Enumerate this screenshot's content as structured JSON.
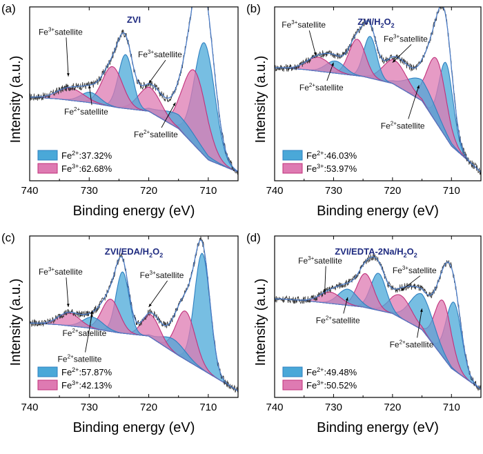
{
  "colors": {
    "fe2_fill": "#4aa8d8",
    "fe3_fill": "#de7ab2",
    "fe2_line": "#2f7fc0",
    "fe3_line": "#c0307a",
    "raw": "#333333",
    "envelope": "#4c7dc8",
    "title": "#1f2b80"
  },
  "chart_data": [
    {
      "panel": "(a)",
      "type": "line",
      "title_parts": [
        "ZVI"
      ],
      "xlabel": "Binding energy (eV)",
      "ylabel": "Intensity (a.u.)",
      "xlim": [
        740,
        705
      ],
      "ylim": [
        0,
        1
      ],
      "xticks": [
        740,
        730,
        720,
        710
      ],
      "x_tick_labels": [
        "740",
        "730",
        "720",
        "710"
      ],
      "background": [
        [
          705,
          0.05
        ],
        [
          710,
          0.12
        ],
        [
          715,
          0.3
        ],
        [
          720,
          0.4
        ],
        [
          725,
          0.42
        ],
        [
          730,
          0.45
        ],
        [
          735,
          0.47
        ],
        [
          739,
          0.48
        ]
      ],
      "peaks": [
        {
          "species": "Fe2+",
          "center": 710.6,
          "height": 0.65,
          "width": 1.7
        },
        {
          "species": "Fe3+",
          "center": 712.3,
          "height": 0.43,
          "width": 2.0
        },
        {
          "species": "Fe2+",
          "center": 714.8,
          "height": 0.08,
          "width": 3.0
        },
        {
          "species": "Fe3+",
          "center": 719.8,
          "height": 0.14,
          "width": 1.9
        },
        {
          "species": "Fe2+",
          "center": 723.9,
          "height": 0.31,
          "width": 1.2
        },
        {
          "species": "Fe3+",
          "center": 726.1,
          "height": 0.23,
          "width": 1.7
        },
        {
          "species": "Fe2+",
          "center": 729.8,
          "height": 0.06,
          "width": 1.6
        },
        {
          "species": "Fe3+",
          "center": 733.2,
          "height": 0.07,
          "width": 2.2
        }
      ],
      "annotations": [
        {
          "ion": "Fe",
          "charge": "3+",
          "word": "satellite",
          "tx": 738.5,
          "ty": 0.84,
          "ax": 733.5,
          "ay": 0.6
        },
        {
          "ion": "Fe",
          "charge": "2+",
          "word": "satellite",
          "tx": 734.2,
          "ty": 0.38,
          "ax": 730.0,
          "ay": 0.55
        },
        {
          "ion": "Fe",
          "charge": "3+",
          "word": "satellite",
          "tx": 721.8,
          "ty": 0.71,
          "ax": 720.0,
          "ay": 0.56
        },
        {
          "ion": "Fe",
          "charge": "2+",
          "word": "satellite",
          "tx": 722.5,
          "ty": 0.25,
          "ax": 715.5,
          "ay": 0.45
        }
      ],
      "legend": [
        {
          "ion": "Fe",
          "charge": "2+",
          "value": ":37.32%"
        },
        {
          "ion": "Fe",
          "charge": "3+",
          "value": ":62.68%"
        }
      ]
    },
    {
      "panel": "(b)",
      "type": "line",
      "title_parts": [
        "ZVI/H",
        "2",
        "O",
        "2"
      ],
      "xlabel": "Binding energy (eV)",
      "ylabel": "Intensity (a.u.)",
      "xlim": [
        740,
        705
      ],
      "ylim": [
        0,
        1
      ],
      "xticks": [
        740,
        730,
        720,
        710
      ],
      "x_tick_labels": [
        "740",
        "730",
        "720",
        "710"
      ],
      "background": [
        [
          705,
          0.05
        ],
        [
          710,
          0.2
        ],
        [
          715,
          0.46
        ],
        [
          720,
          0.56
        ],
        [
          725,
          0.6
        ],
        [
          730,
          0.62
        ],
        [
          735,
          0.64
        ],
        [
          739,
          0.65
        ]
      ],
      "peaks": [
        {
          "species": "Fe2+",
          "center": 710.9,
          "height": 0.43,
          "width": 1.2
        },
        {
          "species": "Fe3+",
          "center": 712.5,
          "height": 0.37,
          "width": 1.6
        },
        {
          "species": "Fe2+",
          "center": 715.0,
          "height": 0.12,
          "width": 2.5
        },
        {
          "species": "Fe3+",
          "center": 719.6,
          "height": 0.14,
          "width": 2.0
        },
        {
          "species": "Fe2+",
          "center": 723.8,
          "height": 0.24,
          "width": 1.1
        },
        {
          "species": "Fe3+",
          "center": 726.0,
          "height": 0.21,
          "width": 1.4
        },
        {
          "species": "Fe2+",
          "center": 729.7,
          "height": 0.07,
          "width": 1.6
        },
        {
          "species": "Fe3+",
          "center": 732.6,
          "height": 0.08,
          "width": 2.0
        }
      ],
      "annotations": [
        {
          "ion": "Fe",
          "charge": "3+",
          "word": "satellite",
          "tx": 738.8,
          "ty": 0.88,
          "ax": 733.0,
          "ay": 0.72
        },
        {
          "ion": "Fe",
          "charge": "2+",
          "word": "satellite",
          "tx": 735.8,
          "ty": 0.52,
          "ax": 730.0,
          "ay": 0.68
        },
        {
          "ion": "Fe",
          "charge": "3+",
          "word": "satellite",
          "tx": 721.5,
          "ty": 0.8,
          "ax": 720.0,
          "ay": 0.68
        },
        {
          "ion": "Fe",
          "charge": "2+",
          "word": "satellite",
          "tx": 722.0,
          "ty": 0.3,
          "ax": 715.5,
          "ay": 0.55
        }
      ],
      "legend": [
        {
          "ion": "Fe",
          "charge": "2+",
          "value": ":46.03%"
        },
        {
          "ion": "Fe",
          "charge": "3+",
          "value": ":53.97%"
        }
      ]
    },
    {
      "panel": "(c)",
      "type": "line",
      "title_parts": [
        "ZVI/EDA/H",
        "2",
        "O",
        "2"
      ],
      "xlabel": "Binding energy (eV)",
      "ylabel": "Intensity (a.u.)",
      "xlim": [
        740,
        705
      ],
      "ylim": [
        0,
        1
      ],
      "xticks": [
        740,
        730,
        720,
        710
      ],
      "x_tick_labels": [
        "740",
        "730",
        "720",
        "710"
      ],
      "background": [
        [
          705,
          0.04
        ],
        [
          710,
          0.15
        ],
        [
          715,
          0.26
        ],
        [
          720,
          0.38
        ],
        [
          725,
          0.4
        ],
        [
          730,
          0.43
        ],
        [
          735,
          0.45
        ],
        [
          739,
          0.46
        ]
      ],
      "peaks": [
        {
          "species": "Fe2+",
          "center": 711.0,
          "height": 0.72,
          "width": 1.3
        },
        {
          "species": "Fe3+",
          "center": 713.8,
          "height": 0.3,
          "width": 1.6
        },
        {
          "species": "Fe2+",
          "center": 715.8,
          "height": 0.08,
          "width": 2.0
        },
        {
          "species": "Fe3+",
          "center": 719.6,
          "height": 0.14,
          "width": 1.5
        },
        {
          "species": "Fe2+",
          "center": 724.4,
          "height": 0.38,
          "width": 1.1
        },
        {
          "species": "Fe3+",
          "center": 726.4,
          "height": 0.2,
          "width": 1.5
        },
        {
          "species": "Fe2+",
          "center": 729.4,
          "height": 0.07,
          "width": 1.7
        },
        {
          "species": "Fe3+",
          "center": 733.4,
          "height": 0.08,
          "width": 1.8
        }
      ],
      "annotations": [
        {
          "ion": "Fe",
          "charge": "3+",
          "word": "satellite",
          "tx": 738.5,
          "ty": 0.76,
          "ax": 733.5,
          "ay": 0.56
        },
        {
          "ion": "Fe",
          "charge": "2+",
          "word": "satellite",
          "tx": 734.5,
          "ty": 0.38,
          "ax": 729.5,
          "ay": 0.54
        },
        {
          "ion": "Fe",
          "charge": "3+",
          "word": "satellite",
          "tx": 721.5,
          "ty": 0.74,
          "ax": 720.0,
          "ay": 0.56
        },
        {
          "ion": "Fe",
          "charge": "2+",
          "word": "satellite",
          "tx": 0,
          "ty": 0,
          "ax": 0,
          "ay": 0
        }
      ],
      "legend": [
        {
          "ion": "Fe",
          "charge": "2+",
          "value": ":57.87%"
        },
        {
          "ion": "Fe",
          "charge": "3+",
          "value": ":42.13%"
        }
      ]
    },
    {
      "panel": "(d)",
      "type": "line",
      "title_parts": [
        "ZVI/EDTA-2Na/H",
        "2",
        "O",
        "2"
      ],
      "xlabel": "Binding energy (eV)",
      "ylabel": "Intensity (a.u.)",
      "xlim": [
        740,
        705
      ],
      "ylim": [
        0,
        1
      ],
      "xticks": [
        740,
        730,
        720,
        710
      ],
      "x_tick_labels": [
        "740",
        "730",
        "720",
        "710"
      ],
      "background": [
        [
          705,
          0.05
        ],
        [
          710,
          0.18
        ],
        [
          715,
          0.42
        ],
        [
          720,
          0.52
        ],
        [
          725,
          0.56
        ],
        [
          730,
          0.58
        ],
        [
          735,
          0.6
        ],
        [
          739,
          0.61
        ]
      ],
      "peaks": [
        {
          "species": "Fe2+",
          "center": 709.6,
          "height": 0.42,
          "width": 1.3
        },
        {
          "species": "Fe3+",
          "center": 711.4,
          "height": 0.35,
          "width": 1.4
        },
        {
          "species": "Fe2+",
          "center": 715.0,
          "height": 0.22,
          "width": 2.0
        },
        {
          "species": "Fe3+",
          "center": 718.6,
          "height": 0.14,
          "width": 1.8
        },
        {
          "species": "Fe2+",
          "center": 722.4,
          "height": 0.23,
          "width": 1.3
        },
        {
          "species": "Fe3+",
          "center": 724.6,
          "height": 0.21,
          "width": 1.4
        },
        {
          "species": "Fe2+",
          "center": 727.6,
          "height": 0.1,
          "width": 1.6
        },
        {
          "species": "Fe3+",
          "center": 730.6,
          "height": 0.07,
          "width": 1.8
        }
      ],
      "annotations": [
        {
          "ion": "Fe",
          "charge": "3+",
          "word": "satellite",
          "tx": 736.0,
          "ty": 0.83,
          "ax": 731.5,
          "ay": 0.65
        },
        {
          "ion": "Fe",
          "charge": "2+",
          "word": "satellite",
          "tx": 733.0,
          "ty": 0.46,
          "ax": 727.6,
          "ay": 0.62
        },
        {
          "ion": "Fe",
          "charge": "3+",
          "word": "satellite",
          "tx": 720.0,
          "ty": 0.77,
          "ax": 718.6,
          "ay": 0.66
        },
        {
          "ion": "Fe",
          "charge": "2+",
          "word": "satellite",
          "tx": 720.5,
          "ty": 0.31,
          "ax": 715.0,
          "ay": 0.55
        }
      ],
      "legend": [
        {
          "ion": "Fe",
          "charge": "2+",
          "value": ":49.48%"
        },
        {
          "ion": "Fe",
          "charge": "3+",
          "value": ":50.52%"
        }
      ]
    }
  ]
}
